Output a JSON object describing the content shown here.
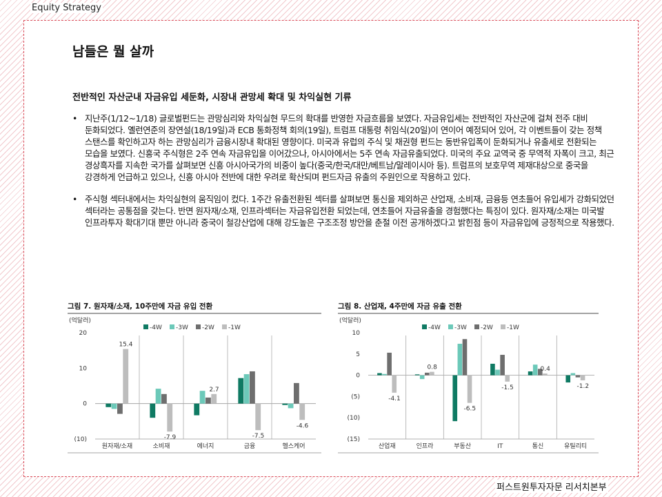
{
  "header": {
    "section": "Equity  Strategy"
  },
  "page_title": "남들은 뭘 살까",
  "subtitle": "전반적인 자산군내 자금유입 세둔화, 시장내 관망세 확대 및 차익실현 기류",
  "bullets": [
    "지난주(1/12~1/18) 글로벌펀드는 관망심리와 차익실현 무드의 확대를 반영한 자금흐름을 보였다. 자금유입세는 전반적인 자산군에 걸쳐 전주 대비 둔화되었다. 옐런연준의 장연설(18/19일)과 ECB 통화정책 회의(19일), 트럼프 대통령 취임식(20일)이 연이어 예정되어 있어, 각 이벤트들이 갖는 정책 스탠스를 확인하고자 하는 관망심리가 금융시장내 확대된 영향이다. 미국과 유럽의 주식 및 채권형 펀드는 동반유입폭이 둔화되거나 유출세로 전환되는 모습을 보였다. 신흥국 주식형은 2주 연속 자금유입을 이어갔으나, 아시아에서는 5주 연속 자금유출되었다. 미국의 주요 교역국 중 무역적 자폭이 크고, 최근 경상흑자를 지속한 국가를 살펴보면 신흥 아시아국가의 비중이 높다(중국/한국/대만/베트남/말레이시아 등). 트럼프의 보호무역 제재대상으로 중국을 강경하게 언급하고 있으나, 신흥 아시아 전반에 대한 우려로 확산되며 펀드자금 유출의 주원인으로 작용하고 있다.",
    "주식형 섹터내에서는 차익실현의 움직임이 컸다. 1주간 유출전환된 섹터를 살펴보면 통신을 제외하곤 산업재, 소비재, 금융등 연초들어 유입세가 강화되었던 섹터라는 공통점을 갖는다. 반면 원자재/소재, 인프라섹터는 자금유입전환 되었는데, 연초들어 자금유출을 경험했다는 특징이 있다. 원자재/소재는 미국발 인프라투자 확대기대 뿐만 아니라 중국이 철강산업에 대해 강도높은 구조조정 방안을 춘절 이전 공개하겠다고 밝힌점 등이 자금유입에 긍정적으로 작용했다."
  ],
  "footer": "퍼스트원투자자문 리서치본부",
  "chart_data": [
    {
      "type": "bar",
      "title": "그림 7. 원자재/소재, 10주만에 자금 유입 전환",
      "unit_label": "(억달러)",
      "categories": [
        "원자재/소재",
        "소비재",
        "에너지",
        "금융",
        "헬스케어"
      ],
      "series": [
        {
          "name": "-4W",
          "color": "#0f7a63",
          "values": [
            -1.0,
            -4.0,
            -3.3,
            7.2,
            -0.4
          ]
        },
        {
          "name": "-3W",
          "color": "#6cc9b9",
          "values": [
            -1.5,
            4.2,
            3.6,
            8.3,
            -1.3
          ]
        },
        {
          "name": "-2W",
          "color": "#6e6e6e",
          "values": [
            -2.9,
            2.7,
            1.7,
            9.1,
            5.8
          ]
        },
        {
          "name": "-1W",
          "color": "#bdbdbd",
          "values": [
            15.4,
            -7.9,
            2.7,
            -7.5,
            -4.6
          ]
        }
      ],
      "data_labels": [
        "15.4",
        "-7.9",
        "2.7",
        "-7.5",
        "-4.6"
      ],
      "yticks": [
        "20",
        "10",
        "0",
        "(10)"
      ],
      "ylim": [
        -10,
        20
      ]
    },
    {
      "type": "bar",
      "title": "그림 8. 산업재, 4주만에 자금 유출 전환",
      "unit_label": "(억달러)",
      "categories": [
        "산업재",
        "인프라",
        "부동산",
        "IT",
        "통신",
        "유틸리티"
      ],
      "series": [
        {
          "name": "-4W",
          "color": "#0f7a63",
          "values": [
            0.5,
            0.2,
            -10.8,
            2.7,
            0.9,
            -1.7
          ]
        },
        {
          "name": "-3W",
          "color": "#6cc9b9",
          "values": [
            0.3,
            -0.9,
            7.4,
            1.3,
            2.5,
            0.5
          ]
        },
        {
          "name": "-2W",
          "color": "#6e6e6e",
          "values": [
            5.3,
            0.6,
            8.5,
            4.8,
            1.5,
            -0.5
          ]
        },
        {
          "name": "-1W",
          "color": "#bdbdbd",
          "values": [
            -4.1,
            0.8,
            -6.5,
            -1.5,
            0.4,
            -1.2
          ]
        }
      ],
      "data_labels": [
        "-4.1",
        "0.8",
        "-6.5",
        "-1.5",
        "0.4",
        "-1.2"
      ],
      "yticks": [
        "10",
        "5",
        "0",
        "(5)",
        "(10)",
        "(15)"
      ],
      "ylim": [
        -15,
        10
      ]
    }
  ]
}
